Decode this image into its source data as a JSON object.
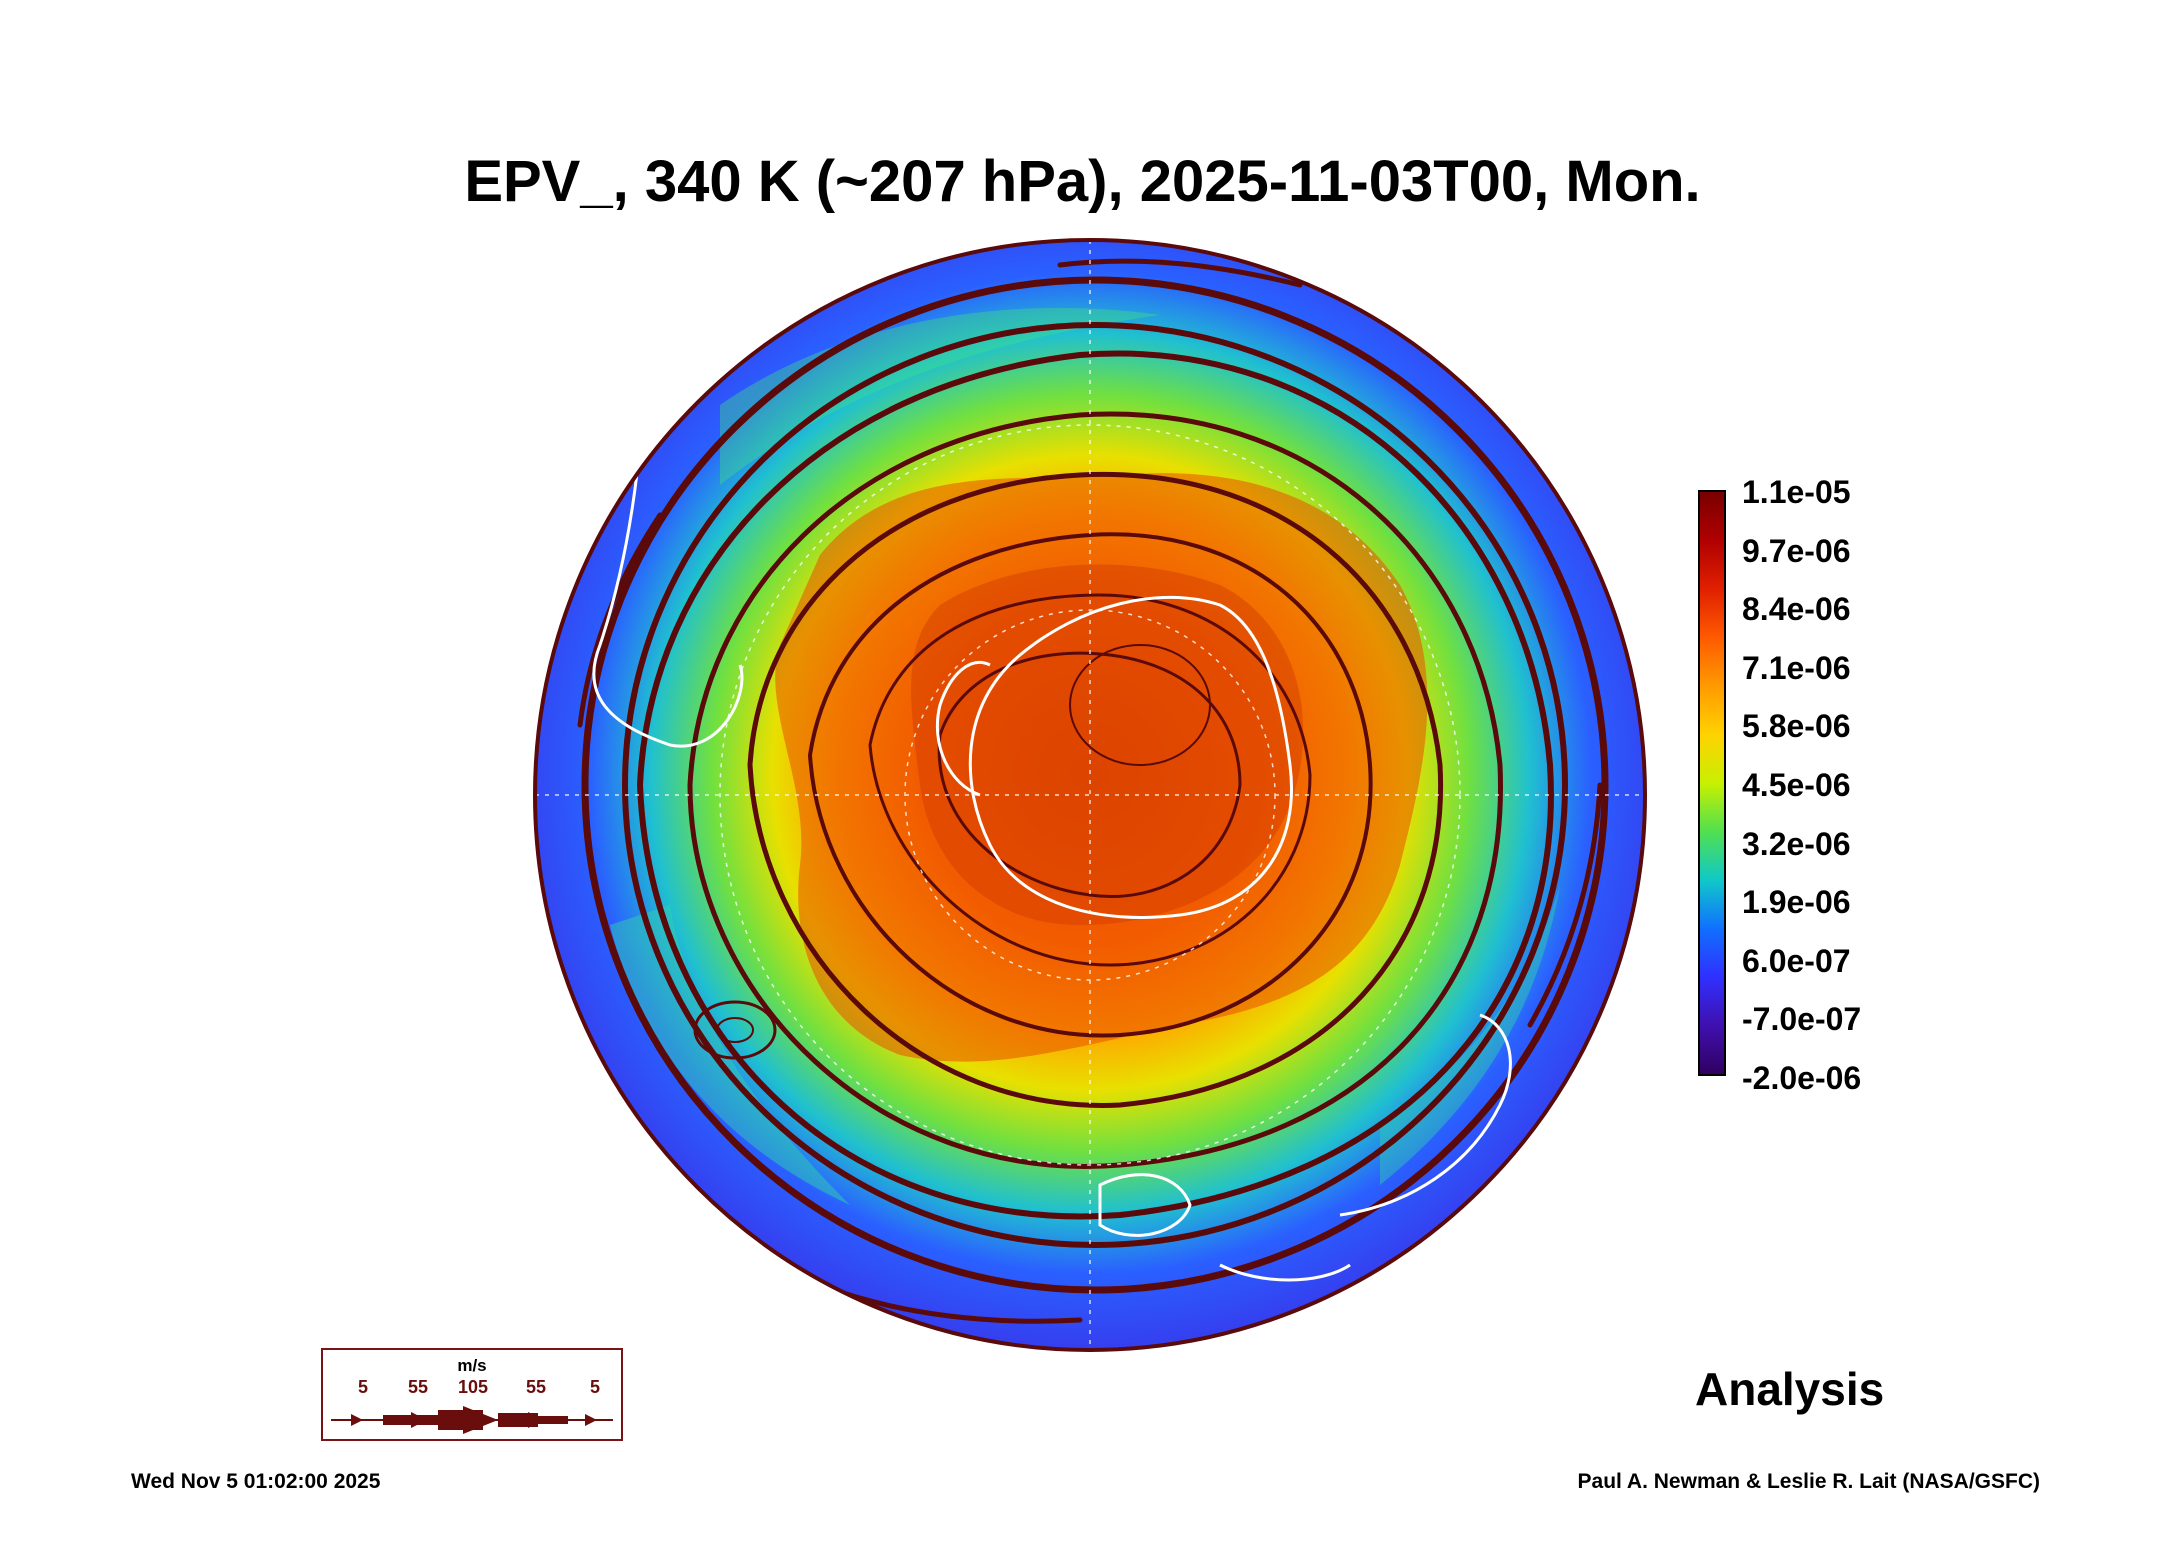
{
  "title": "EPV_, 340 K (~207 hPa), 2025-11-03T00, Mon.",
  "colorbar": {
    "labels": [
      "1.1e-05",
      "9.7e-06",
      "8.4e-06",
      "7.1e-06",
      "5.8e-06",
      "4.5e-06",
      "3.2e-06",
      "1.9e-06",
      "6.0e-07",
      "-7.0e-07",
      "-2.0e-06"
    ],
    "stops": [
      "#7a0000",
      "#b00000",
      "#e02000",
      "#ff5a00",
      "#ff9a00",
      "#ffd200",
      "#c8f000",
      "#50e050",
      "#10c8c8",
      "#1070ff",
      "#3030ff",
      "#4010b0",
      "#300060"
    ]
  },
  "legend": {
    "unit": "m/s",
    "speeds": [
      "5",
      "55",
      "105",
      "55",
      "5"
    ],
    "color": "#6a0d0d"
  },
  "analysis_label": "Analysis",
  "footer": {
    "timestamp": "Wed Nov  5 01:02:00 2025",
    "credit": "Paul A. Newman & Leslie R. Lait (NASA/GSFC)"
  },
  "map": {
    "projection": "polar-orthographic",
    "streamline_color": "#5a0a0a",
    "coastline_color": "#ffffff"
  }
}
